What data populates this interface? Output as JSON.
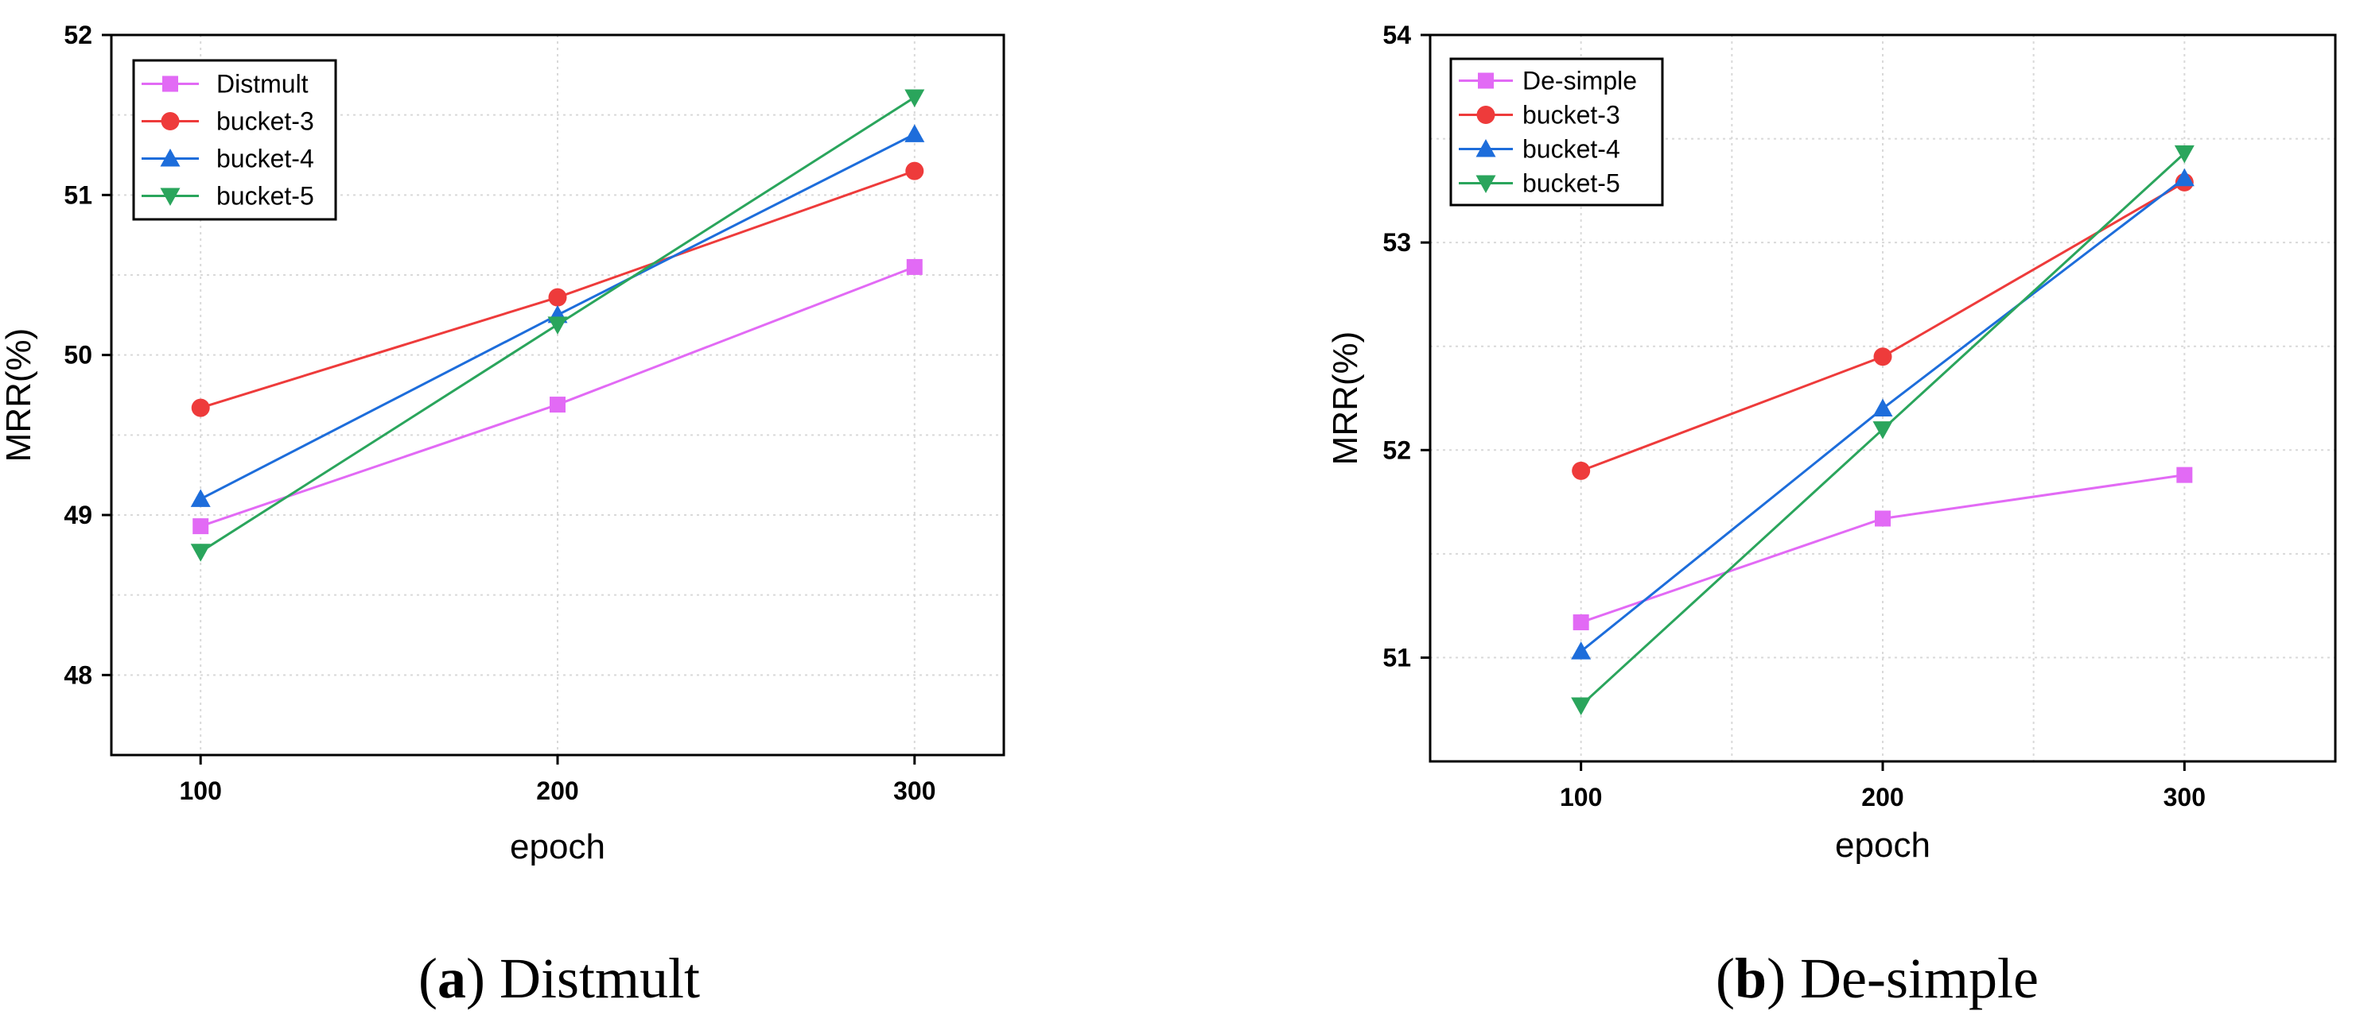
{
  "chart_data": [
    {
      "type": "line",
      "title": "",
      "xlabel": "epoch",
      "ylabel": "MRR(%)",
      "x": [
        100,
        200,
        300
      ],
      "xticks": [
        "100",
        "200",
        "300"
      ],
      "yticks": [
        "48",
        "49",
        "50",
        "51",
        "52"
      ],
      "xlim": [
        75,
        325
      ],
      "ylim": [
        47.5,
        52
      ],
      "grid": true,
      "legend_position": "top-left",
      "series": [
        {
          "name": "Distmult",
          "values": [
            48.93,
            49.69,
            50.55
          ],
          "color": "#e26af5",
          "marker": "square"
        },
        {
          "name": "bucket-3",
          "values": [
            49.67,
            50.36,
            51.15
          ],
          "color": "#ee3b3b",
          "marker": "circle"
        },
        {
          "name": "bucket-4",
          "values": [
            49.1,
            50.25,
            51.38
          ],
          "color": "#1d6ddb",
          "marker": "triangle-up"
        },
        {
          "name": "bucket-5",
          "values": [
            48.77,
            50.19,
            51.61
          ],
          "color": "#2aa55c",
          "marker": "triangle-down"
        }
      ],
      "caption": {
        "letter": "a",
        "text": "Distmult"
      }
    },
    {
      "type": "line",
      "title": "",
      "xlabel": "epoch",
      "ylabel": "MRR(%)",
      "x": [
        100,
        200,
        300
      ],
      "xticks": [
        "100",
        "200",
        "300"
      ],
      "yticks": [
        "51",
        "52",
        "53",
        "54"
      ],
      "xlim": [
        50,
        350
      ],
      "ylim": [
        50.5,
        54
      ],
      "grid": true,
      "legend_position": "top-left",
      "series": [
        {
          "name": "De-simple",
          "values": [
            51.17,
            51.67,
            51.88
          ],
          "color": "#e26af5",
          "marker": "square"
        },
        {
          "name": "bucket-3",
          "values": [
            51.9,
            52.45,
            53.29
          ],
          "color": "#ee3b3b",
          "marker": "circle"
        },
        {
          "name": "bucket-4",
          "values": [
            51.03,
            52.2,
            53.31
          ],
          "color": "#1d6ddb",
          "marker": "triangle-up"
        },
        {
          "name": "bucket-5",
          "values": [
            50.77,
            52.1,
            53.43
          ],
          "color": "#2aa55c",
          "marker": "triangle-down"
        }
      ],
      "caption": {
        "letter": "b",
        "text": "De-simple"
      }
    }
  ]
}
